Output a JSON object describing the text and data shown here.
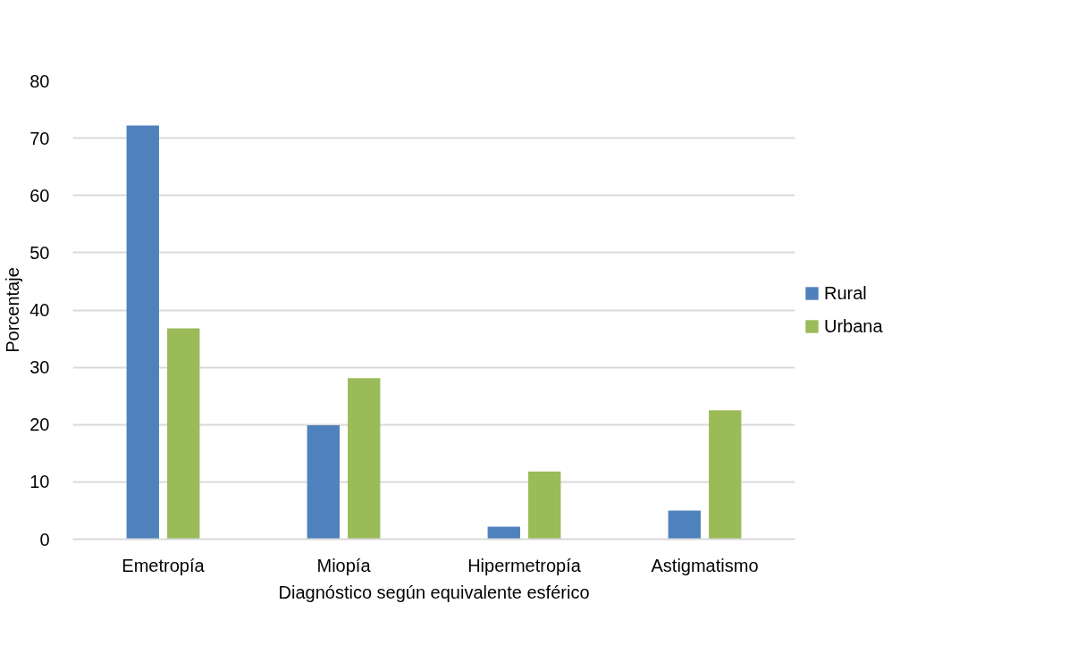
{
  "chart_data": {
    "type": "bar",
    "xlabel": "Diagnóstico según equivalente esférico",
    "ylabel": "Porcentaje",
    "categories": [
      "Emetropía",
      "Miopía",
      "Hipermetropía",
      "Astigmatismo"
    ],
    "series": [
      {
        "name": "Rural",
        "color": "#4f81bd",
        "values": [
          72.2,
          19.9,
          2.2,
          5.0
        ]
      },
      {
        "name": "Urbana",
        "color": "#9bbb59",
        "values": [
          36.8,
          28.1,
          11.8,
          22.5
        ]
      }
    ],
    "ylim": [
      0,
      80
    ],
    "yticks": [
      0,
      10,
      20,
      30,
      40,
      50,
      60,
      70,
      80
    ],
    "grid": "y",
    "legend": "right"
  }
}
